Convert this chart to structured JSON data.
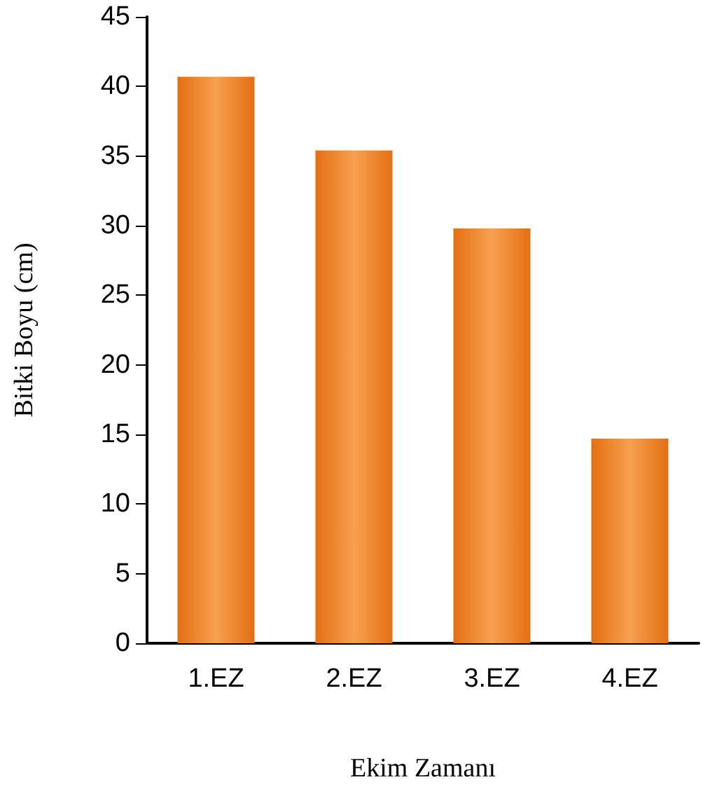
{
  "chart_data": {
    "type": "bar",
    "xlabel": "Ekim Zamanı",
    "ylabel": "Bitki Boyu (cm)",
    "categories": [
      "1.EZ",
      "2.EZ",
      "3.EZ",
      "4.EZ"
    ],
    "values": [
      40.7,
      35.4,
      29.8,
      14.7
    ],
    "color": "#e36f12",
    "ylim": [
      0,
      45
    ],
    "yticks": [
      0,
      5,
      10,
      15,
      20,
      25,
      30,
      35,
      40,
      45
    ],
    "grid": false
  }
}
